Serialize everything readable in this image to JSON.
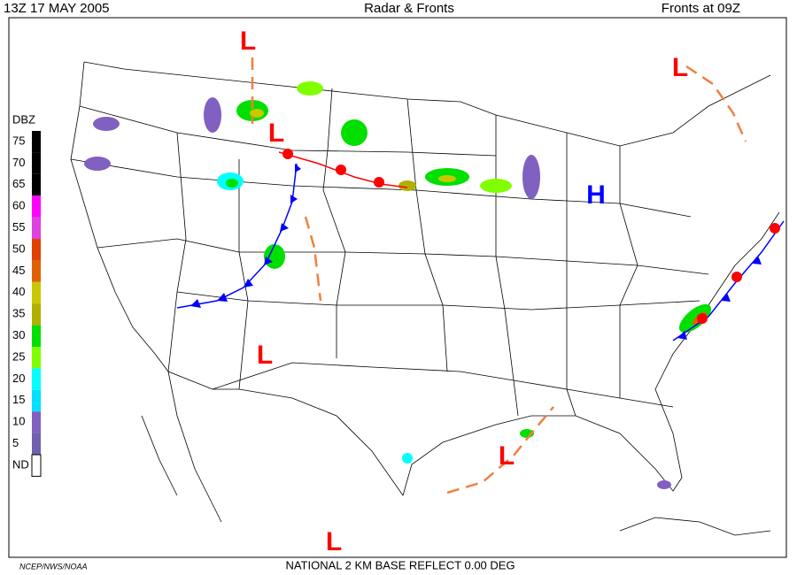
{
  "header": {
    "left": "13Z  17 MAY  2005",
    "center": "Radar & Fronts",
    "right": "Fronts at 09Z"
  },
  "legend": {
    "title": "DBZ",
    "items": [
      {
        "label": "75",
        "color": "#000000"
      },
      {
        "label": "70",
        "color": "#000000"
      },
      {
        "label": "65",
        "color": "#000000"
      },
      {
        "label": "60",
        "color": "#ff00ff"
      },
      {
        "label": "55",
        "color": "#e040e0"
      },
      {
        "label": "50",
        "color": "#e04000"
      },
      {
        "label": "45",
        "color": "#e06000"
      },
      {
        "label": "40",
        "color": "#c8c800"
      },
      {
        "label": "35",
        "color": "#b0b000"
      },
      {
        "label": "30",
        "color": "#00e000"
      },
      {
        "label": "25",
        "color": "#80ff00"
      },
      {
        "label": "20",
        "color": "#00ffff"
      },
      {
        "label": "15",
        "color": "#00e0ff"
      },
      {
        "label": "10",
        "color": "#8060c0"
      },
      {
        "label": "5",
        "color": "#7060b0"
      },
      {
        "label": "ND",
        "color": "#ffffff"
      }
    ]
  },
  "pressure_centers": [
    {
      "label": "L",
      "color": "#ff0000"
    },
    {
      "label": "L",
      "color": "#ff0000"
    },
    {
      "label": "L",
      "color": "#ff0000"
    },
    {
      "label": "H",
      "color": "#0000ff"
    },
    {
      "label": "L",
      "color": "#ff0000"
    },
    {
      "label": "L",
      "color": "#ff0000"
    },
    {
      "label": "L",
      "color": "#ff0000"
    }
  ],
  "footer": {
    "credit": "NCEP/NWS/NOAA",
    "product": "NATIONAL 2 KM BASE REFLECT 0.00 DEG"
  }
}
